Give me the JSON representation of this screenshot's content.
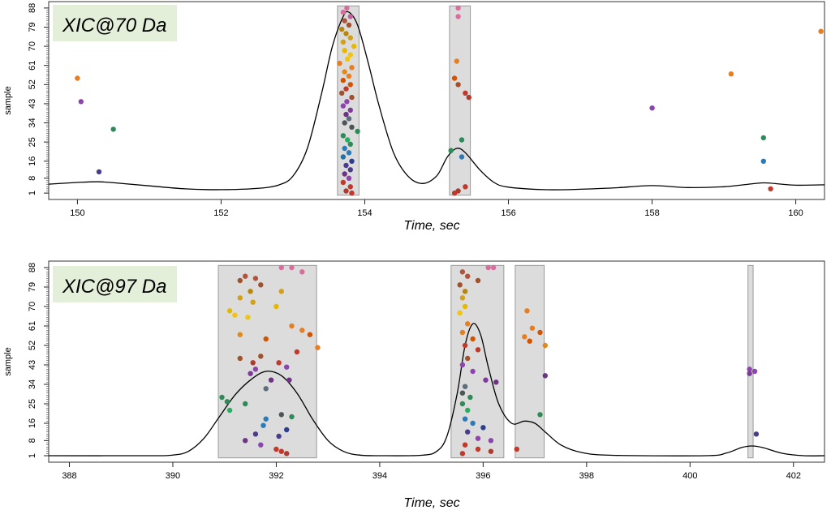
{
  "chart_data": [
    {
      "type": "scatter",
      "badge": "XIC@70 Da",
      "xlabel": "Time, sec",
      "ylabel": "sample",
      "xlim": [
        149.6,
        160.4
      ],
      "ylim": [
        -2,
        91
      ],
      "x_ticks": [
        150,
        152,
        154,
        156,
        158,
        160
      ],
      "y_ticks": [
        1,
        8,
        16,
        25,
        34,
        43,
        52,
        61,
        70,
        79,
        88
      ],
      "highlight_windows": [
        [
          153.62,
          153.92
        ],
        [
          155.18,
          155.47
        ]
      ],
      "curve": [
        [
          149.6,
          5.2
        ],
        [
          150.0,
          6.0
        ],
        [
          150.3,
          6.3
        ],
        [
          150.6,
          5.6
        ],
        [
          151.0,
          4.4
        ],
        [
          151.5,
          3.0
        ],
        [
          152.0,
          2.6
        ],
        [
          152.5,
          3.2
        ],
        [
          152.8,
          4.8
        ],
        [
          153.0,
          9
        ],
        [
          153.2,
          22
        ],
        [
          153.4,
          48
        ],
        [
          153.55,
          70
        ],
        [
          153.7,
          84
        ],
        [
          153.78,
          86
        ],
        [
          153.9,
          80
        ],
        [
          154.05,
          62
        ],
        [
          154.2,
          42
        ],
        [
          154.4,
          20
        ],
        [
          154.6,
          9
        ],
        [
          154.8,
          5.5
        ],
        [
          155.0,
          9
        ],
        [
          155.15,
          18
        ],
        [
          155.28,
          22
        ],
        [
          155.4,
          20
        ],
        [
          155.6,
          12
        ],
        [
          155.8,
          6
        ],
        [
          156.0,
          3.8
        ],
        [
          156.5,
          2.6
        ],
        [
          157.0,
          2.8
        ],
        [
          157.5,
          3.5
        ],
        [
          158.0,
          4.5
        ],
        [
          158.5,
          3.6
        ],
        [
          159.0,
          4.0
        ],
        [
          159.3,
          5.0
        ],
        [
          159.55,
          5.8
        ],
        [
          159.8,
          5.2
        ],
        [
          160.0,
          4.7
        ],
        [
          160.4,
          4.9
        ]
      ],
      "points": [
        [
          150.0,
          55,
          "#e67e22"
        ],
        [
          150.05,
          44,
          "#8e44ad"
        ],
        [
          150.3,
          11,
          "#4a3c8c"
        ],
        [
          150.5,
          31,
          "#2e8b57"
        ],
        [
          158.0,
          41,
          "#8e44ad"
        ],
        [
          159.1,
          57,
          "#e67e22"
        ],
        [
          159.55,
          27,
          "#2e8b57"
        ],
        [
          159.55,
          16,
          "#2c7bb6"
        ],
        [
          159.65,
          3,
          "#c0392b"
        ],
        [
          160.35,
          77,
          "#e67e22"
        ],
        [
          155.3,
          88,
          "#d66e9e"
        ],
        [
          155.3,
          84,
          "#d66e9e"
        ],
        [
          155.28,
          63,
          "#e67e22"
        ],
        [
          155.25,
          55,
          "#d35400"
        ],
        [
          155.3,
          52,
          "#a0522d"
        ],
        [
          155.4,
          48,
          "#c0392b"
        ],
        [
          155.45,
          46,
          "#b03a2e"
        ],
        [
          155.35,
          26,
          "#2e8b57"
        ],
        [
          155.2,
          21,
          "#2e8b57"
        ],
        [
          155.35,
          18,
          "#2c7bb6"
        ],
        [
          155.4,
          4,
          "#c0392b"
        ],
        [
          155.25,
          1,
          "#c0392b"
        ],
        [
          155.3,
          2,
          "#b03a2e"
        ],
        [
          153.75,
          88,
          "#d66e9e"
        ],
        [
          153.7,
          86,
          "#d66e9e"
        ],
        [
          153.8,
          84,
          "#c0609e"
        ],
        [
          153.72,
          82,
          "#b0543c"
        ],
        [
          153.78,
          80,
          "#a0522d"
        ],
        [
          153.68,
          78,
          "#b8860b"
        ],
        [
          153.74,
          76,
          "#b8860b"
        ],
        [
          153.8,
          74,
          "#d4a017"
        ],
        [
          153.7,
          72,
          "#d4a017"
        ],
        [
          153.85,
          70,
          "#e6b800"
        ],
        [
          153.72,
          68,
          "#e6b800"
        ],
        [
          153.8,
          66,
          "#f1c40f"
        ],
        [
          153.76,
          64,
          "#f1c40f"
        ],
        [
          153.65,
          62,
          "#e67e22"
        ],
        [
          153.82,
          60,
          "#e67e22"
        ],
        [
          153.72,
          58,
          "#e08a1e"
        ],
        [
          153.78,
          56,
          "#e67e22"
        ],
        [
          153.7,
          54,
          "#d35400"
        ],
        [
          153.8,
          52,
          "#d35400"
        ],
        [
          153.74,
          50,
          "#c0392b"
        ],
        [
          153.68,
          48,
          "#a0522d"
        ],
        [
          153.82,
          46,
          "#a0522d"
        ],
        [
          153.75,
          44,
          "#8e44ad"
        ],
        [
          153.7,
          42,
          "#8e44ad"
        ],
        [
          153.8,
          40,
          "#7d3c98"
        ],
        [
          153.74,
          38,
          "#6c3483"
        ],
        [
          153.78,
          36,
          "#5d6d7e"
        ],
        [
          153.72,
          34,
          "#4d5656"
        ],
        [
          153.82,
          32,
          "#4d5656"
        ],
        [
          153.9,
          30,
          "#2e8b57"
        ],
        [
          153.7,
          28,
          "#2e8b57"
        ],
        [
          153.76,
          26,
          "#27ae60"
        ],
        [
          153.8,
          24,
          "#2e8b57"
        ],
        [
          153.72,
          22,
          "#2c7bb6"
        ],
        [
          153.78,
          20,
          "#2c7bb6"
        ],
        [
          153.7,
          18,
          "#2471a3"
        ],
        [
          153.82,
          16,
          "#2c3e90"
        ],
        [
          153.74,
          14,
          "#4a3c8c"
        ],
        [
          153.8,
          12,
          "#4a3c8c"
        ],
        [
          153.72,
          10,
          "#6c3483"
        ],
        [
          153.78,
          8,
          "#8e44ad"
        ],
        [
          153.7,
          6,
          "#c0392b"
        ],
        [
          153.8,
          4,
          "#c0392b"
        ],
        [
          153.74,
          2,
          "#b03a2e"
        ],
        [
          153.82,
          1,
          "#c0392b"
        ]
      ]
    },
    {
      "type": "scatter",
      "badge": "XIC@97 Da",
      "xlabel": "Time, sec",
      "ylabel": "sample",
      "xlim": [
        387.6,
        402.6
      ],
      "ylim": [
        -2,
        91
      ],
      "x_ticks": [
        388,
        390,
        392,
        394,
        396,
        398,
        400,
        402
      ],
      "y_ticks": [
        1,
        8,
        16,
        25,
        34,
        43,
        52,
        61,
        70,
        79,
        88
      ],
      "highlight_windows": [
        [
          390.88,
          392.78
        ],
        [
          395.38,
          396.4
        ],
        [
          396.62,
          397.18
        ],
        [
          401.12,
          401.22
        ]
      ],
      "curve": [
        [
          387.6,
          1
        ],
        [
          389.5,
          1
        ],
        [
          390.0,
          1.3
        ],
        [
          390.3,
          3
        ],
        [
          390.6,
          9
        ],
        [
          390.9,
          19
        ],
        [
          391.2,
          29
        ],
        [
          391.5,
          36
        ],
        [
          391.8,
          40
        ],
        [
          392.1,
          38
        ],
        [
          392.4,
          30
        ],
        [
          392.7,
          18
        ],
        [
          393.0,
          8
        ],
        [
          393.3,
          3
        ],
        [
          393.6,
          1.3
        ],
        [
          394.0,
          1
        ],
        [
          394.8,
          1.2
        ],
        [
          395.1,
          3
        ],
        [
          395.3,
          10
        ],
        [
          395.5,
          30
        ],
        [
          395.65,
          52
        ],
        [
          395.8,
          62
        ],
        [
          395.95,
          57
        ],
        [
          396.1,
          42
        ],
        [
          396.3,
          25
        ],
        [
          396.55,
          16
        ],
        [
          396.8,
          17
        ],
        [
          397.0,
          16
        ],
        [
          397.2,
          12
        ],
        [
          397.5,
          6
        ],
        [
          397.9,
          2.5
        ],
        [
          398.5,
          1.2
        ],
        [
          400.3,
          1
        ],
        [
          400.7,
          2.2
        ],
        [
          401.0,
          4.8
        ],
        [
          401.2,
          5.5
        ],
        [
          401.4,
          4.8
        ],
        [
          401.8,
          2
        ],
        [
          402.2,
          1
        ],
        [
          402.6,
          1
        ]
      ],
      "points": [
        [
          392.1,
          88,
          "#d66e9e"
        ],
        [
          392.3,
          88,
          "#d66e9e"
        ],
        [
          392.5,
          86,
          "#d66e9e"
        ],
        [
          391.4,
          84,
          "#b0543c"
        ],
        [
          391.6,
          83,
          "#b0543c"
        ],
        [
          391.3,
          82,
          "#a0522d"
        ],
        [
          391.7,
          80,
          "#a0522d"
        ],
        [
          391.5,
          77,
          "#b8860b"
        ],
        [
          392.1,
          77,
          "#d4a017"
        ],
        [
          391.3,
          74,
          "#d4a017"
        ],
        [
          391.55,
          72,
          "#d4a017"
        ],
        [
          392.0,
          70,
          "#e6b800"
        ],
        [
          391.1,
          68,
          "#e6b800"
        ],
        [
          391.2,
          66,
          "#f1c40f"
        ],
        [
          391.45,
          65,
          "#f1c40f"
        ],
        [
          392.3,
          61,
          "#e67e22"
        ],
        [
          392.5,
          59,
          "#e67e22"
        ],
        [
          392.65,
          57,
          "#d35400"
        ],
        [
          391.3,
          57,
          "#e08a1e"
        ],
        [
          391.8,
          55,
          "#d35400"
        ],
        [
          392.8,
          51,
          "#e67e22"
        ],
        [
          392.4,
          49,
          "#c0392b"
        ],
        [
          391.7,
          47,
          "#a0522d"
        ],
        [
          391.3,
          46,
          "#a0522d"
        ],
        [
          391.55,
          44,
          "#b03a2e"
        ],
        [
          392.05,
          44,
          "#c0392b"
        ],
        [
          392.2,
          42,
          "#8e44ad"
        ],
        [
          391.6,
          41,
          "#8e44ad"
        ],
        [
          391.5,
          39,
          "#7d3c98"
        ],
        [
          391.9,
          36,
          "#6c3483"
        ],
        [
          392.25,
          36,
          "#6c3483"
        ],
        [
          391.8,
          32,
          "#5d6d7e"
        ],
        [
          390.95,
          28,
          "#2e8b57"
        ],
        [
          391.05,
          26,
          "#2e8b57"
        ],
        [
          391.4,
          25,
          "#2e8b57"
        ],
        [
          391.1,
          22,
          "#27ae60"
        ],
        [
          392.1,
          20,
          "#4d5656"
        ],
        [
          392.3,
          19,
          "#2e8b57"
        ],
        [
          391.8,
          18,
          "#2c7bb6"
        ],
        [
          391.75,
          15,
          "#2c7bb6"
        ],
        [
          392.2,
          13,
          "#2c3e90"
        ],
        [
          391.6,
          11,
          "#4a3c8c"
        ],
        [
          392.05,
          10,
          "#4a3c8c"
        ],
        [
          391.4,
          8,
          "#6c3483"
        ],
        [
          391.7,
          6,
          "#8e44ad"
        ],
        [
          392.0,
          4,
          "#c0392b"
        ],
        [
          392.1,
          3,
          "#c0392b"
        ],
        [
          392.2,
          2,
          "#b03a2e"
        ],
        [
          396.1,
          88,
          "#d66e9e"
        ],
        [
          396.2,
          88,
          "#d66e9e"
        ],
        [
          395.6,
          86,
          "#b0543c"
        ],
        [
          395.7,
          84,
          "#b0543c"
        ],
        [
          395.9,
          82,
          "#a0522d"
        ],
        [
          395.55,
          80,
          "#a0522d"
        ],
        [
          395.65,
          77,
          "#b8860b"
        ],
        [
          395.6,
          74,
          "#d4a017"
        ],
        [
          395.65,
          70,
          "#e6b800"
        ],
        [
          395.55,
          67,
          "#f1c40f"
        ],
        [
          395.7,
          62,
          "#e67e22"
        ],
        [
          395.6,
          58,
          "#e67e22"
        ],
        [
          395.8,
          55,
          "#d35400"
        ],
        [
          395.65,
          52,
          "#c0392b"
        ],
        [
          395.9,
          50,
          "#c0392b"
        ],
        [
          395.7,
          46,
          "#a0522d"
        ],
        [
          395.6,
          43,
          "#8e44ad"
        ],
        [
          395.8,
          40,
          "#8e44ad"
        ],
        [
          396.05,
          36,
          "#7d3c98"
        ],
        [
          396.25,
          35,
          "#6c3483"
        ],
        [
          395.65,
          33,
          "#5d6d7e"
        ],
        [
          395.6,
          30,
          "#4d5656"
        ],
        [
          395.75,
          28,
          "#2e8b57"
        ],
        [
          395.6,
          25,
          "#2e8b57"
        ],
        [
          395.7,
          22,
          "#27ae60"
        ],
        [
          395.65,
          18,
          "#2c7bb6"
        ],
        [
          395.8,
          16,
          "#2c7bb6"
        ],
        [
          396.0,
          14,
          "#2c3e90"
        ],
        [
          395.7,
          12,
          "#4a3c8c"
        ],
        [
          395.9,
          9,
          "#8e44ad"
        ],
        [
          396.15,
          8,
          "#8e44ad"
        ],
        [
          395.65,
          6,
          "#c0392b"
        ],
        [
          395.9,
          4,
          "#c0392b"
        ],
        [
          396.15,
          3,
          "#b03a2e"
        ],
        [
          395.6,
          2,
          "#c0392b"
        ],
        [
          396.85,
          68,
          "#e67e22"
        ],
        [
          396.95,
          60,
          "#e67e22"
        ],
        [
          397.1,
          58,
          "#d35400"
        ],
        [
          396.8,
          56,
          "#e67e22"
        ],
        [
          396.9,
          54,
          "#d35400"
        ],
        [
          397.2,
          52,
          "#e08a1e"
        ],
        [
          397.2,
          38,
          "#6c3483"
        ],
        [
          397.1,
          20,
          "#2e8b57"
        ],
        [
          396.65,
          4,
          "#c0392b"
        ],
        [
          401.15,
          41,
          "#8e44ad"
        ],
        [
          401.25,
          40,
          "#8e44ad"
        ],
        [
          401.15,
          39,
          "#7d3c98"
        ],
        [
          401.28,
          11,
          "#4a3c8c"
        ]
      ]
    }
  ]
}
